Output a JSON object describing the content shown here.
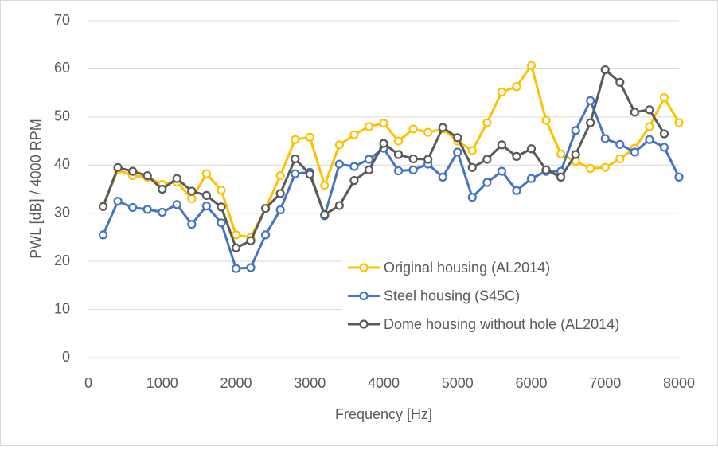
{
  "chart_data": {
    "type": "line",
    "xlabel": "Frequency [Hz]",
    "ylabel": "PWL [dB] / 4000 RPM",
    "x": [
      200,
      400,
      600,
      800,
      1000,
      1200,
      1400,
      1600,
      1800,
      2000,
      2200,
      2400,
      2600,
      2800,
      3000,
      3200,
      3400,
      3600,
      3800,
      4000,
      4200,
      4400,
      4600,
      4800,
      5000,
      5200,
      5400,
      5600,
      5800,
      6000,
      6200,
      6400,
      6600,
      6800,
      7000,
      7200,
      7400,
      7600,
      7800,
      8000
    ],
    "series": [
      {
        "name": "Original housing (AL2014)",
        "color": "#ffc000",
        "values": [
          31.5,
          39,
          37.8,
          37.5,
          36,
          36.5,
          33,
          38.2,
          34.8,
          25.5,
          25,
          31,
          37.8,
          45.3,
          45.8,
          35.8,
          44.2,
          46.3,
          48,
          48.7,
          45,
          47.5,
          46.8,
          47.5,
          45,
          43,
          48.8,
          55.2,
          56.3,
          60.7,
          49.3,
          42.3,
          40.8,
          39.3,
          39.5,
          41.3,
          43.5,
          48,
          54,
          48.8
        ]
      },
      {
        "name": "Steel housing (S45C)",
        "color": "#4472c4",
        "values": [
          25.5,
          32.5,
          31.2,
          30.8,
          30.2,
          31.8,
          27.7,
          31.5,
          28,
          18.5,
          18.7,
          25.5,
          30.7,
          38.2,
          38.5,
          29.5,
          40.2,
          39.7,
          41.2,
          43.5,
          38.8,
          39,
          40.2,
          37.5,
          42.7,
          33.3,
          36.4,
          38.7,
          34.7,
          37.2,
          38.7,
          38.7,
          47.2,
          53.4,
          45.5,
          44.3,
          42.7,
          45.3,
          43.7,
          37.5
        ]
      },
      {
        "name": "Dome housing without hole (AL2014)",
        "color": "#595959",
        "values": [
          31.4,
          39.5,
          38.7,
          37.8,
          35,
          37.2,
          34.6,
          33.7,
          31.3,
          22.8,
          24.3,
          31,
          34.1,
          41.3,
          38.1,
          29.7,
          31.6,
          36.8,
          39,
          44.5,
          42.2,
          41.3,
          41.2,
          47.8,
          45.7,
          39.5,
          41.2,
          44.2,
          41.8,
          43.4,
          39,
          37.5,
          42.2,
          48.8,
          59.8,
          57.2,
          51,
          51.5,
          46.5,
          null
        ]
      }
    ],
    "xlim": [
      0,
      8000
    ],
    "xticks": [
      0,
      1000,
      2000,
      3000,
      4000,
      5000,
      6000,
      7000,
      8000
    ],
    "ylim": [
      0,
      70
    ],
    "yticks": [
      0,
      10,
      20,
      30,
      40,
      50,
      60,
      70
    ],
    "grid": true
  }
}
